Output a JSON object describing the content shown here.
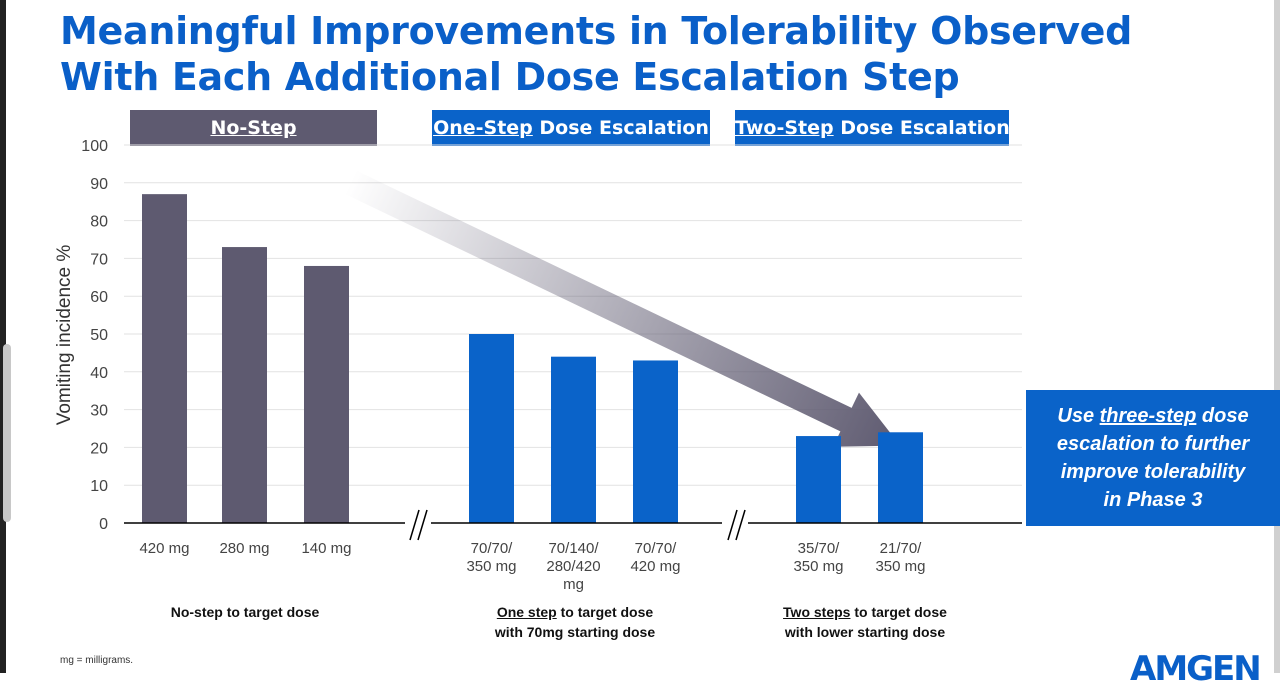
{
  "title": {
    "line1": "Meaningful Improvements in Tolerability Observed",
    "line2": "With Each Additional Dose Escalation Step"
  },
  "headers": {
    "no_step": "No-Step",
    "one_step_ul": "One-Step",
    "one_step_rest": " Dose Escalation",
    "two_step_ul": "Two-Step",
    "two_step_rest": " Dose Escalation"
  },
  "colors": {
    "gray": "#5e5a70",
    "blue": "#0a63c9",
    "title": "#0a5fc8"
  },
  "chart_data": {
    "type": "bar",
    "ylabel": "Vomiting incidence %",
    "ylim": [
      0,
      100
    ],
    "yticks": [
      0,
      10,
      20,
      30,
      40,
      50,
      60,
      70,
      80,
      90,
      100
    ],
    "grid": true,
    "groups": [
      {
        "name": "No-step to target dose",
        "color": "#5e5a70",
        "bars": [
          {
            "category": "420 mg",
            "value": 87
          },
          {
            "category": "280 mg",
            "value": 73
          },
          {
            "category": "140 mg",
            "value": 68
          }
        ]
      },
      {
        "name": "One step to target dose with 70mg starting dose",
        "color": "#0a63c9",
        "bars": [
          {
            "category": "70/70/ 350 mg",
            "value": 50
          },
          {
            "category": "70/140/ 280/420 mg",
            "value": 44
          },
          {
            "category": "70/70/ 420 mg",
            "value": 43
          }
        ]
      },
      {
        "name": "Two steps to target dose with lower starting dose",
        "color": "#0a63c9",
        "bars": [
          {
            "category": "35/70/ 350 mg",
            "value": 23
          },
          {
            "category": "21/70/ 350 mg",
            "value": 24
          }
        ]
      }
    ],
    "category_label_lines": [
      [
        "420 mg"
      ],
      [
        "280 mg"
      ],
      [
        "140 mg"
      ],
      [
        "70/70/",
        "350 mg"
      ],
      [
        "70/140/",
        "280/420",
        "mg"
      ],
      [
        "70/70/",
        "420 mg"
      ],
      [
        "35/70/",
        "350 mg"
      ],
      [
        "21/70/",
        "350 mg"
      ]
    ]
  },
  "captions": {
    "no_step": "No-step to target dose",
    "one_step_ul": "One step",
    "one_step_rest1": " to target dose",
    "one_step_line2": "with 70mg starting dose",
    "two_step_ul": "Two steps",
    "two_step_rest1": " to target dose",
    "two_step_line2": "with lower starting dose"
  },
  "callout": {
    "pre": "Use ",
    "ul": "three-step",
    "post1": " dose",
    "line2": "escalation to further",
    "line3": "improve tolerability",
    "line4": "in Phase 3"
  },
  "footnote": "mg = milligrams.",
  "logo": "AMGEN"
}
